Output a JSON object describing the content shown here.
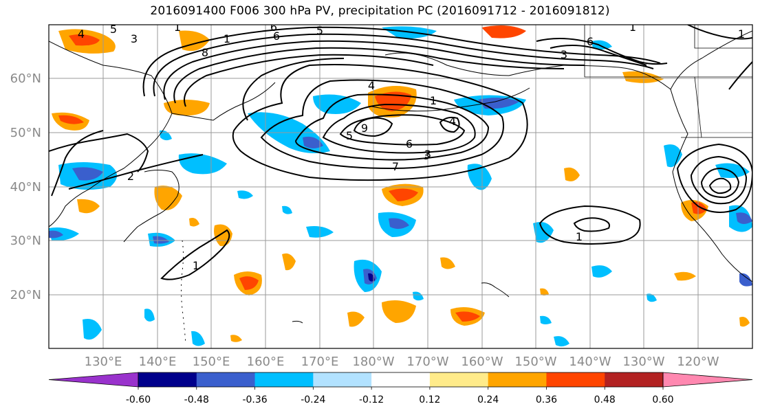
{
  "title": "2016091400 F006 300 hPa PV, precipitation PC (2016091712 - 2016091812)",
  "map": {
    "lon_ticks": [
      "130°E",
      "140°E",
      "150°E",
      "160°E",
      "170°E",
      "180°W",
      "170°W",
      "160°W",
      "150°W",
      "140°W",
      "130°W",
      "120°W"
    ],
    "lat_ticks": [
      "60°N",
      "50°N",
      "40°N",
      "30°N",
      "20°N"
    ],
    "grid": true
  },
  "colorbar": {
    "tick_labels": [
      "-0.60",
      "-0.48",
      "-0.36",
      "-0.24",
      "-0.12",
      "0.12",
      "0.24",
      "0.36",
      "0.48",
      "0.60"
    ],
    "colors": [
      "#9932CC",
      "#00008B",
      "#3A5FCD",
      "#00BFFF",
      "#B2E2FF",
      "#FFFFFF",
      "#FFEB8A",
      "#FFA500",
      "#FF4500",
      "#B22222",
      "#FF88B0"
    ]
  },
  "contour_labels": [
    "4",
    "5",
    "3",
    "1",
    "8",
    "6",
    "5",
    "1",
    "6",
    "3",
    "3",
    "4",
    "1",
    "4",
    "9",
    "5",
    "6",
    "6",
    "7",
    "3",
    "1",
    "1",
    "2",
    "1",
    "1"
  ]
}
